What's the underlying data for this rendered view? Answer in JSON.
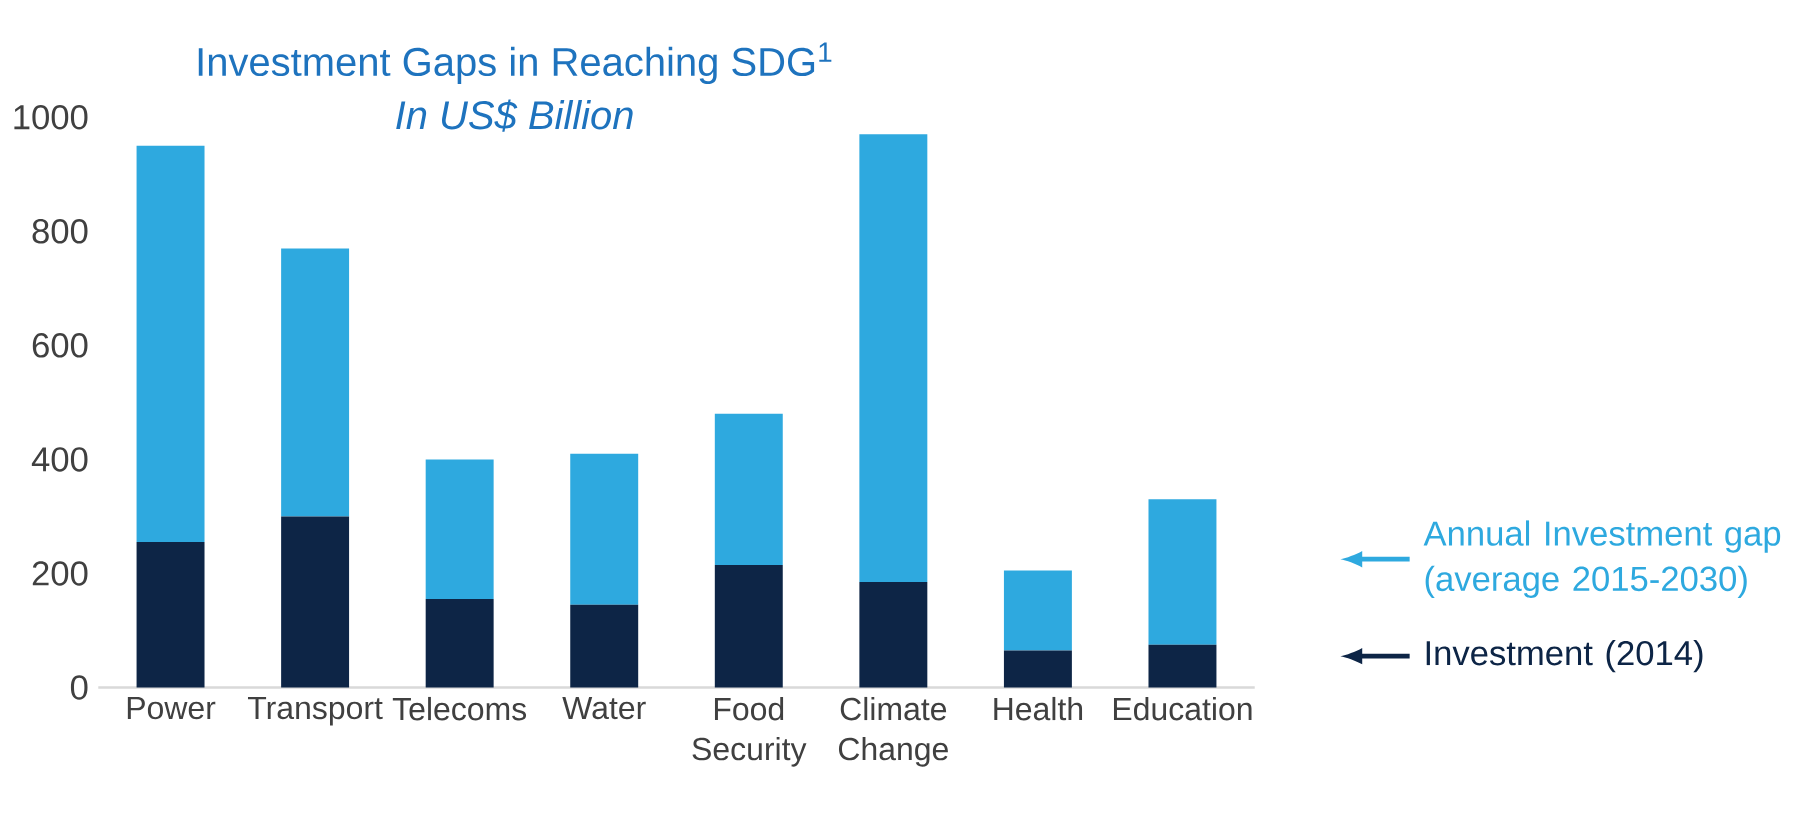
{
  "chart_data": {
    "type": "bar",
    "title": "Investment Gaps in Reaching SDG$^{1}$",
    "subtitle": "In US$ Billion",
    "categories": [
      "Power",
      "Transport",
      "Telecoms",
      "Water",
      "Food Security",
      "Climate Change",
      "Health",
      "Education"
    ],
    "stacked": true,
    "series": [
      {
        "name": "Investment (2014)",
        "color": "#0d2546",
        "values": [
          255,
          300,
          155,
          145,
          215,
          185,
          65,
          75
        ]
      },
      {
        "name": "Annual Investment gap (average 2015-2030)",
        "color": "#2ea9df",
        "values": [
          695,
          470,
          245,
          265,
          265,
          785,
          140,
          255
        ]
      }
    ],
    "ylim": [
      0,
      1000
    ],
    "yticks": [
      0,
      200,
      400,
      600,
      800,
      1000
    ],
    "legend": "right"
  }
}
